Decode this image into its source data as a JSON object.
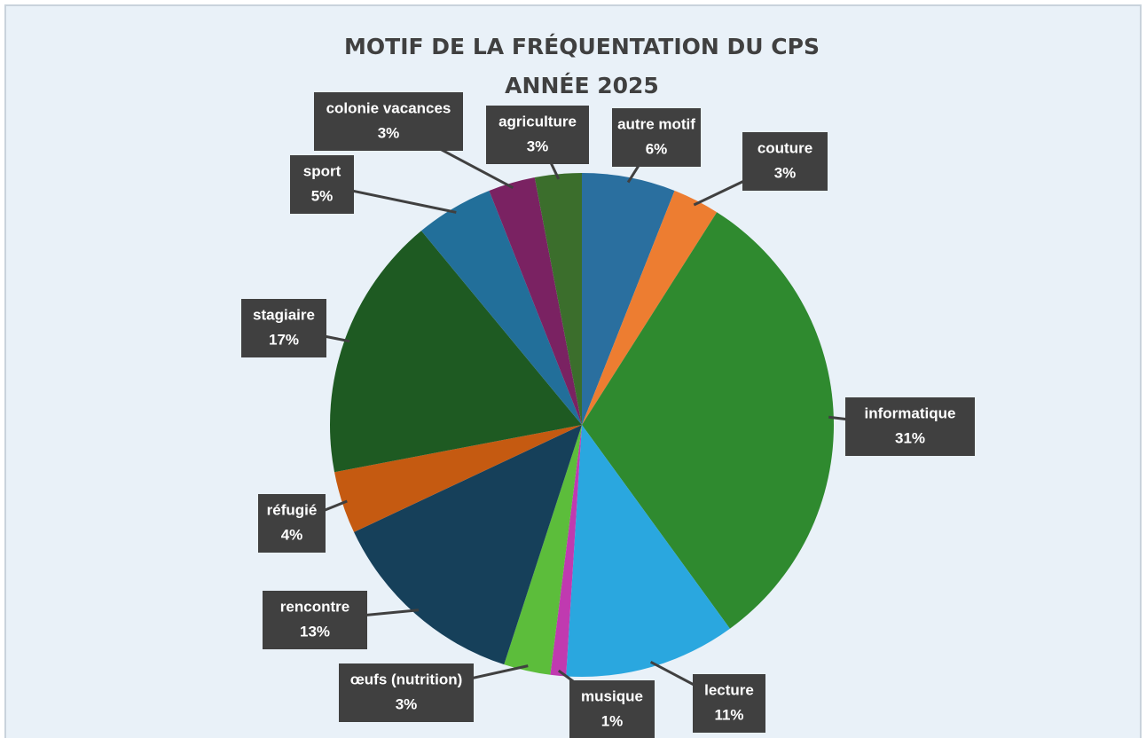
{
  "chart_data": {
    "type": "pie",
    "title": "MOTIF DE LA FRÉQUENTATION DU CPS",
    "subtitle": "ANNÉE 2025",
    "categories": [
      "autre motif",
      "couture",
      "informatique",
      "lecture",
      "musique",
      "œufs (nutrition)",
      "rencontre",
      "réfugié",
      "stagiaire",
      "sport",
      "colonie vacances",
      "agriculture"
    ],
    "values": [
      6,
      3,
      31,
      11,
      1,
      3,
      13,
      4,
      17,
      5,
      3,
      3
    ],
    "value_labels": [
      "6%",
      "3%",
      "31%",
      "11%",
      "1%",
      "3%",
      "13%",
      "4%",
      "17%",
      "5%",
      "3%",
      "3%"
    ],
    "colors": [
      "#2a6f9f",
      "#ed7d31",
      "#2f8a2f",
      "#2aa7df",
      "#c03ab0",
      "#5cbd3b",
      "#16405a",
      "#c55a11",
      "#1e5a22",
      "#226f9a",
      "#7a2262",
      "#3b6e2c"
    ]
  }
}
